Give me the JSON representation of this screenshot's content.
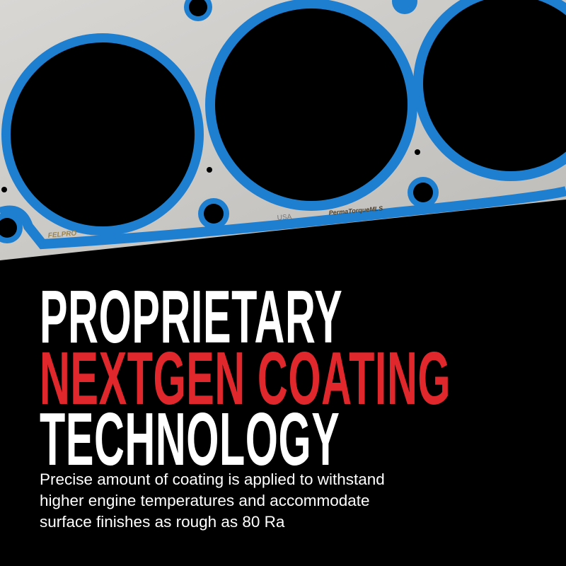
{
  "image": {
    "gasket_markings": {
      "brand": "FELPRO",
      "origin": "USA",
      "product": "PermaTorqueMLS"
    },
    "colors": {
      "coating": "#1e7fd0",
      "metal": "#cfcdca",
      "accent": "#e0282c",
      "background": "#000000"
    }
  },
  "headline": {
    "line1": "PROPRIETARY",
    "line2": "NEXTGEN COATING",
    "line3": "TECHNOLOGY"
  },
  "body": {
    "line1": "Precise amount of coating is applied to withstand",
    "line2": "higher engine temperatures and accommodate",
    "line3": "surface finishes as rough as 80 Ra"
  }
}
